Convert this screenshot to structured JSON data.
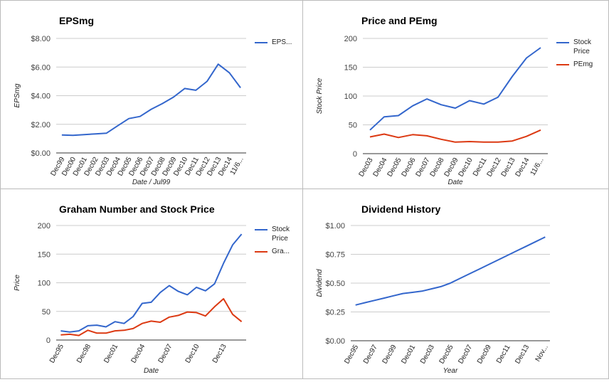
{
  "chart_data": [
    {
      "type": "line",
      "title": "EPSmg",
      "x_label": "Date / Jul99",
      "y_label": "EPSmg",
      "categories": [
        "Dec99",
        "Dec00",
        "Dec01",
        "Dec02",
        "Dec03",
        "Dec04",
        "Dec05",
        "Dec06",
        "Dec07",
        "Dec08",
        "Dec09",
        "Dec10",
        "Dec11",
        "Dec12",
        "Dec13",
        "Dec14",
        "11/6..."
      ],
      "series": [
        {
          "name": "EPS...",
          "color": "#3366cc",
          "values": [
            1.25,
            1.23,
            1.28,
            1.33,
            1.38,
            1.9,
            2.4,
            2.55,
            3.05,
            3.45,
            3.9,
            4.5,
            4.38,
            5.0,
            6.2,
            5.6,
            4.55
          ]
        }
      ],
      "ylim": [
        0,
        8
      ],
      "yticks": [
        {
          "value": 0,
          "label": "$0.00"
        },
        {
          "value": 2,
          "label": "$2.00"
        },
        {
          "value": 4,
          "label": "$4.00"
        },
        {
          "value": 6,
          "label": "$6.00"
        },
        {
          "value": 8,
          "label": "$8.00"
        }
      ],
      "grid": true,
      "legend": "right"
    },
    {
      "type": "line",
      "title": "Price and PEmg",
      "x_label": "Date",
      "y_label": "Stock Price",
      "categories": [
        "Dec03",
        "Dec04",
        "Dec05",
        "Dec06",
        "Dec07",
        "Dec08",
        "Dec09",
        "Dec10",
        "Dec11",
        "Dec12",
        "Dec13",
        "Dec14",
        "11/6..."
      ],
      "series": [
        {
          "name": "Stock Price",
          "color": "#3366cc",
          "values": [
            41,
            64,
            66,
            83,
            95,
            85,
            79,
            92,
            86,
            98,
            134,
            166,
            184
          ]
        },
        {
          "name": "PEmg",
          "color": "#dc3912",
          "values": [
            29,
            34,
            28,
            33,
            31,
            25,
            20,
            21,
            20,
            20,
            22,
            30,
            41
          ]
        }
      ],
      "ylim": [
        0,
        200
      ],
      "yticks": [
        0,
        50,
        100,
        150,
        200
      ],
      "grid": true,
      "legend": "right"
    },
    {
      "type": "line",
      "title": "Graham Number and Stock Price",
      "x_label": "Date",
      "y_label": "Price",
      "categories": [
        "Dec95",
        null,
        null,
        "Dec98",
        null,
        null,
        "Dec01",
        null,
        null,
        "Dec04",
        null,
        null,
        "Dec07",
        null,
        null,
        "Dec10",
        null,
        null,
        "Dec13",
        null,
        null
      ],
      "series": [
        {
          "name": "Stock Price",
          "color": "#3366cc",
          "values": [
            16,
            14,
            16,
            25,
            26,
            23,
            32,
            29,
            41,
            64,
            66,
            83,
            95,
            85,
            79,
            92,
            86,
            98,
            134,
            166,
            185
          ]
        },
        {
          "name": "Gra...",
          "color": "#dc3912",
          "values": [
            9,
            10,
            8,
            17,
            12,
            12,
            16,
            17,
            20,
            29,
            33,
            31,
            40,
            43,
            49,
            48,
            42,
            58,
            72,
            45,
            32
          ]
        }
      ],
      "ylim": [
        0,
        200
      ],
      "yticks": [
        0,
        50,
        100,
        150,
        200
      ],
      "grid": true,
      "legend": "right"
    },
    {
      "type": "line",
      "title": "Dividend History",
      "x_label": "Year",
      "y_label": "Dividend",
      "categories": [
        "Dec95",
        null,
        "Dec97",
        null,
        "Dec99",
        null,
        "Dec01",
        null,
        "Dec03",
        null,
        "Dec05",
        null,
        "Dec07",
        null,
        "Dec09",
        null,
        "Dec11",
        null,
        "Dec13",
        null,
        "Nov..."
      ],
      "values": [
        0.31,
        0.33,
        0.35,
        0.37,
        0.39,
        0.41,
        0.42,
        0.43,
        0.45,
        0.47,
        0.5,
        0.54,
        0.58,
        0.62,
        0.66,
        0.7,
        0.74,
        0.78,
        0.82,
        0.86,
        0.9
      ],
      "color": "#3366cc",
      "ylim": [
        0,
        1
      ],
      "yticks": [
        {
          "value": 0,
          "label": "$0.00"
        },
        {
          "value": 0.25,
          "label": "$0.25"
        },
        {
          "value": 0.5,
          "label": "$0.50"
        },
        {
          "value": 0.75,
          "label": "$0.75"
        },
        {
          "value": 1,
          "label": "$1.00"
        }
      ],
      "grid": true
    }
  ]
}
